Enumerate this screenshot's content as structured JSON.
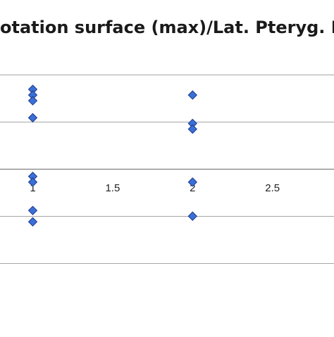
{
  "chart_data": {
    "type": "scatter",
    "title": "otation surface (max)/Lat. Pteryg. L",
    "xlabel": "",
    "ylabel": "",
    "x_ticks": [
      "1",
      "1.5",
      "2",
      "2.5"
    ],
    "x_tick_values": [
      1,
      1.5,
      2,
      2.5
    ],
    "xlim": [
      0.795,
      2.885
    ],
    "ylim": [
      -0.87,
      0.58
    ],
    "y_gridlines": [
      0.5,
      0.25,
      0,
      -0.25,
      -0.5
    ],
    "grid": true,
    "marker": "diamond",
    "marker_color": "#3a6fd8",
    "series": [
      {
        "x": [
          1,
          1,
          1,
          1,
          2,
          2,
          2,
          1,
          1,
          1,
          1,
          2,
          2
        ],
        "y": [
          0.42,
          0.39,
          0.36,
          0.27,
          0.39,
          0.24,
          0.21,
          -0.04,
          -0.07,
          -0.22,
          -0.28,
          -0.07,
          -0.25
        ]
      }
    ]
  }
}
